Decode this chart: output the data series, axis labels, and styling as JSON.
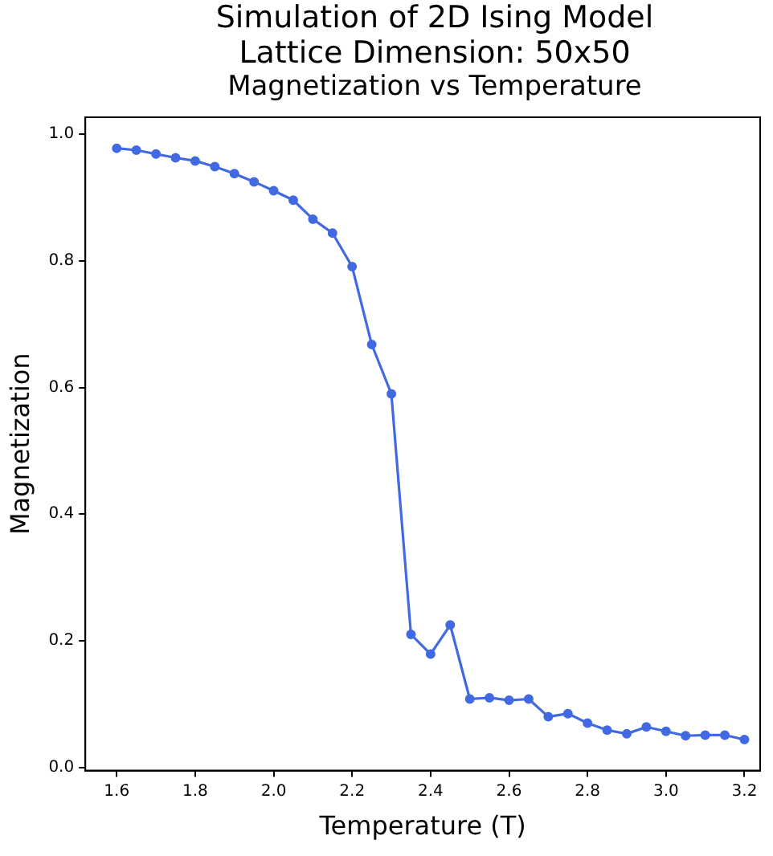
{
  "chart_data": {
    "type": "line",
    "title": "Simulation of 2D Ising Model\nLattice Dimension: 50x50",
    "subtitle": "Magnetization vs Temperature",
    "xlabel": "Temperature (T)",
    "ylabel": "Magnetization",
    "x": [
      1.6,
      1.65,
      1.7,
      1.75,
      1.8,
      1.85,
      1.9,
      1.95,
      2.0,
      2.05,
      2.1,
      2.15,
      2.2,
      2.25,
      2.3,
      2.35,
      2.4,
      2.45,
      2.5,
      2.55,
      2.6,
      2.65,
      2.7,
      2.75,
      2.8,
      2.85,
      2.9,
      2.95,
      3.0,
      3.05,
      3.1,
      3.15,
      3.2
    ],
    "series": [
      {
        "color": "#4169e1",
        "values": [
          0.978,
          0.975,
          0.969,
          0.963,
          0.958,
          0.949,
          0.938,
          0.925,
          0.911,
          0.896,
          0.866,
          0.844,
          0.791,
          0.668,
          0.59,
          0.21,
          0.179,
          0.225,
          0.108,
          0.11,
          0.106,
          0.108,
          0.08,
          0.085,
          0.07,
          0.059,
          0.053,
          0.064,
          0.057,
          0.05,
          0.051,
          0.051,
          0.044
        ]
      }
    ],
    "xlim": [
      1.52,
      3.24
    ],
    "xticks": [
      {
        "value": 1.6,
        "label": "1.6"
      },
      {
        "value": 1.8,
        "label": "1.8"
      },
      {
        "value": 2.0,
        "label": "2.0"
      },
      {
        "value": 2.2,
        "label": "2.2"
      },
      {
        "value": 2.4,
        "label": "2.4"
      },
      {
        "value": 2.6,
        "label": "2.6"
      },
      {
        "value": 2.8,
        "label": "2.8"
      },
      {
        "value": 3.0,
        "label": "3.0"
      },
      {
        "value": 3.2,
        "label": "3.2"
      }
    ],
    "ylim": [
      -0.005,
      1.027
    ],
    "yticks": [
      {
        "value": 0,
        "label": "0.0"
      },
      {
        "value": 0.2,
        "label": "0.2"
      },
      {
        "value": 0.4,
        "label": "0.4"
      },
      {
        "value": 0.6,
        "label": "0.6"
      },
      {
        "value": 0.8,
        "label": "0.8"
      },
      {
        "value": 1.0,
        "label": "1.0"
      }
    ],
    "grid": false,
    "legend": false,
    "marker": "circle",
    "line_style": "solid"
  }
}
